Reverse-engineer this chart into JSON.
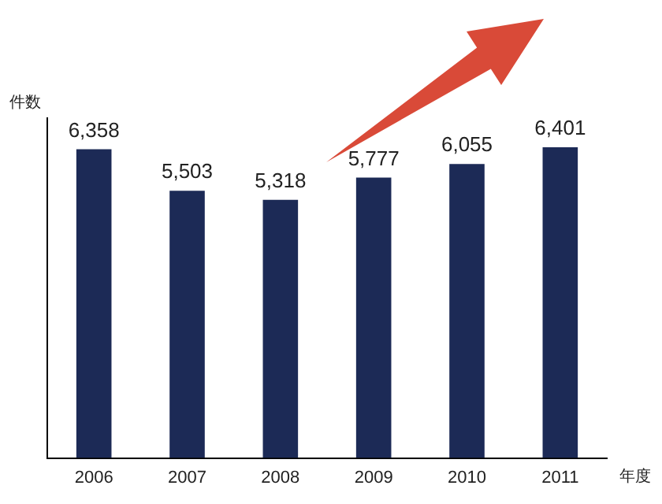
{
  "chart_data": {
    "type": "bar",
    "xlabel": "年度",
    "ylabel": "件数",
    "categories": [
      "2006",
      "2007",
      "2008",
      "2009",
      "2010",
      "2011"
    ],
    "values": [
      6358,
      5503,
      5318,
      5777,
      6055,
      6401
    ],
    "value_labels": [
      "6,358",
      "5,503",
      "5,318",
      "5,777",
      "6,055",
      "6,401"
    ],
    "color": "#1c2a56",
    "tick_labels": "x",
    "grid": false,
    "legend": false
  }
}
